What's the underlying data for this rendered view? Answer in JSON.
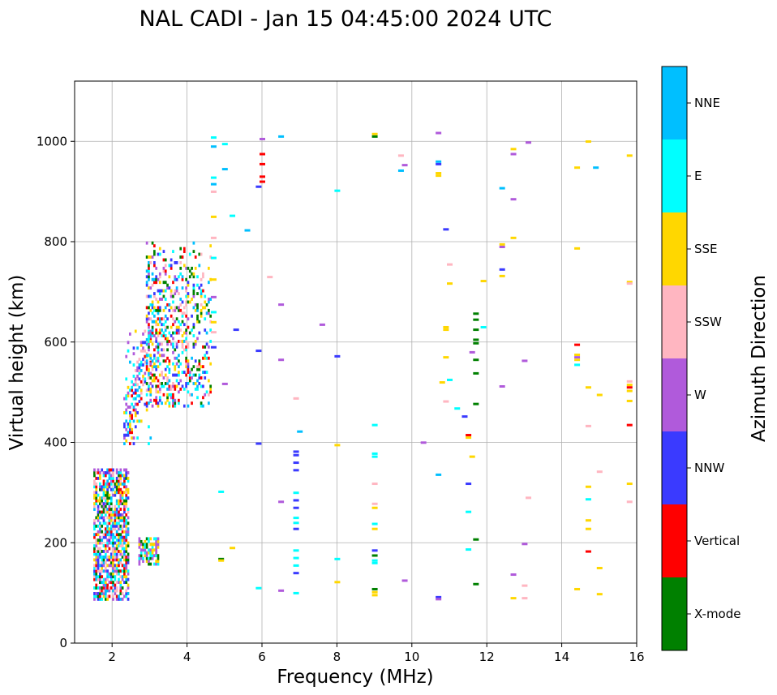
{
  "chart_data": {
    "type": "scatter",
    "title": "NAL CADI - Jan 15 04:45:00 2024 UTC",
    "xlabel": "Frequency (MHz)",
    "ylabel": "Virtual height (km)",
    "xlim": [
      1,
      16
    ],
    "ylim": [
      0,
      1120
    ],
    "xticks": [
      2,
      4,
      6,
      8,
      10,
      12,
      14,
      16
    ],
    "yticks": [
      0,
      200,
      400,
      600,
      800,
      1000
    ],
    "grid": true,
    "colorbar": {
      "label": "Azimuth Direction",
      "categories": [
        {
          "name": "X-mode",
          "color": "#008000"
        },
        {
          "name": "Vertical",
          "color": "#ff0000"
        },
        {
          "name": "NNW",
          "color": "#3a3aff"
        },
        {
          "name": "W",
          "color": "#b05adb"
        },
        {
          "name": "SSW",
          "color": "#ffb6c1"
        },
        {
          "name": "SSE",
          "color": "#ffd700"
        },
        {
          "name": "E",
          "color": "#00ffff"
        },
        {
          "name": "NNE",
          "color": "#00bfff"
        }
      ]
    },
    "clusters": [
      {
        "x": [
          1.5,
          2.4
        ],
        "y": [
          85,
          345
        ],
        "density": 0.65,
        "categories": [
          "Vertical",
          "E",
          "NNE",
          "SSW",
          "SSE",
          "NNW",
          "W",
          "X-mode"
        ]
      },
      {
        "x": [
          2.7,
          3.2
        ],
        "y": [
          155,
          210
        ],
        "density": 0.7,
        "categories": [
          "X-mode",
          "SSE",
          "W",
          "E"
        ]
      },
      {
        "x": [
          2.3,
          3.0
        ],
        "y": [
          395,
          620
        ],
        "density": 0.55,
        "categories": [
          "Vertical",
          "SSE",
          "E",
          "NNE",
          "SSW",
          "NNW",
          "W"
        ]
      },
      {
        "x": [
          2.9,
          4.6
        ],
        "y": [
          470,
          800
        ],
        "density": 0.45,
        "categories": [
          "X-mode",
          "Vertical",
          "NNW",
          "W",
          "SSE",
          "E",
          "NNE",
          "SSW"
        ]
      }
    ],
    "points": [
      {
        "x": 4.7,
        "y": 1008,
        "c": "E"
      },
      {
        "x": 5.0,
        "y": 995,
        "c": "E"
      },
      {
        "x": 4.7,
        "y": 990,
        "c": "NNE"
      },
      {
        "x": 4.7,
        "y": 928,
        "c": "E"
      },
      {
        "x": 4.7,
        "y": 915,
        "c": "NNE"
      },
      {
        "x": 4.7,
        "y": 900,
        "c": "SSW"
      },
      {
        "x": 5.0,
        "y": 945,
        "c": "NNE"
      },
      {
        "x": 4.7,
        "y": 850,
        "c": "SSE"
      },
      {
        "x": 5.2,
        "y": 852,
        "c": "E"
      },
      {
        "x": 5.6,
        "y": 823,
        "c": "NNE"
      },
      {
        "x": 4.7,
        "y": 808,
        "c": "SSW"
      },
      {
        "x": 4.7,
        "y": 768,
        "c": "E"
      },
      {
        "x": 4.7,
        "y": 725,
        "c": "SSE"
      },
      {
        "x": 4.7,
        "y": 690,
        "c": "W"
      },
      {
        "x": 4.7,
        "y": 660,
        "c": "E"
      },
      {
        "x": 4.7,
        "y": 640,
        "c": "SSE"
      },
      {
        "x": 4.7,
        "y": 590,
        "c": "NNW"
      },
      {
        "x": 4.7,
        "y": 620,
        "c": "SSW"
      },
      {
        "x": 5.3,
        "y": 625,
        "c": "NNW"
      },
      {
        "x": 5.0,
        "y": 517,
        "c": "W"
      },
      {
        "x": 4.9,
        "y": 302,
        "c": "E"
      },
      {
        "x": 5.2,
        "y": 190,
        "c": "SSE"
      },
      {
        "x": 4.9,
        "y": 168,
        "c": "X-mode"
      },
      {
        "x": 4.9,
        "y": 165,
        "c": "SSE"
      },
      {
        "x": 6.0,
        "y": 1005,
        "c": "W"
      },
      {
        "x": 6.0,
        "y": 975,
        "c": "Vertical"
      },
      {
        "x": 6.0,
        "y": 955,
        "c": "Vertical"
      },
      {
        "x": 6.0,
        "y": 930,
        "c": "Vertical"
      },
      {
        "x": 6.0,
        "y": 920,
        "c": "Vertical"
      },
      {
        "x": 5.9,
        "y": 910,
        "c": "NNW"
      },
      {
        "x": 6.5,
        "y": 1010,
        "c": "NNE"
      },
      {
        "x": 6.2,
        "y": 730,
        "c": "SSW"
      },
      {
        "x": 6.5,
        "y": 675,
        "c": "W"
      },
      {
        "x": 7.6,
        "y": 635,
        "c": "W"
      },
      {
        "x": 5.9,
        "y": 583,
        "c": "NNW"
      },
      {
        "x": 6.5,
        "y": 565,
        "c": "W"
      },
      {
        "x": 6.9,
        "y": 488,
        "c": "SSW"
      },
      {
        "x": 7.0,
        "y": 422,
        "c": "NNE"
      },
      {
        "x": 5.9,
        "y": 398,
        "c": "NNW"
      },
      {
        "x": 6.9,
        "y": 382,
        "c": "NNW"
      },
      {
        "x": 6.9,
        "y": 375,
        "c": "NNW"
      },
      {
        "x": 6.9,
        "y": 360,
        "c": "NNW"
      },
      {
        "x": 6.9,
        "y": 345,
        "c": "NNW"
      },
      {
        "x": 6.9,
        "y": 300,
        "c": "E"
      },
      {
        "x": 6.9,
        "y": 285,
        "c": "NNW"
      },
      {
        "x": 6.9,
        "y": 270,
        "c": "NNW"
      },
      {
        "x": 6.9,
        "y": 250,
        "c": "E"
      },
      {
        "x": 6.9,
        "y": 240,
        "c": "E"
      },
      {
        "x": 6.9,
        "y": 228,
        "c": "NNW"
      },
      {
        "x": 6.5,
        "y": 282,
        "c": "W"
      },
      {
        "x": 6.9,
        "y": 185,
        "c": "E"
      },
      {
        "x": 6.9,
        "y": 170,
        "c": "E"
      },
      {
        "x": 6.9,
        "y": 155,
        "c": "E"
      },
      {
        "x": 6.9,
        "y": 140,
        "c": "NNW"
      },
      {
        "x": 5.9,
        "y": 110,
        "c": "E"
      },
      {
        "x": 6.5,
        "y": 105,
        "c": "W"
      },
      {
        "x": 6.9,
        "y": 100,
        "c": "E"
      },
      {
        "x": 8.0,
        "y": 902,
        "c": "E"
      },
      {
        "x": 8.0,
        "y": 572,
        "c": "NNW"
      },
      {
        "x": 8.0,
        "y": 395,
        "c": "SSE"
      },
      {
        "x": 8.0,
        "y": 168,
        "c": "E"
      },
      {
        "x": 8.0,
        "y": 122,
        "c": "SSE"
      },
      {
        "x": 9.0,
        "y": 1015,
        "c": "SSE"
      },
      {
        "x": 9.0,
        "y": 1010,
        "c": "X-mode"
      },
      {
        "x": 9.0,
        "y": 435,
        "c": "E"
      },
      {
        "x": 9.0,
        "y": 378,
        "c": "E"
      },
      {
        "x": 9.0,
        "y": 372,
        "c": "E"
      },
      {
        "x": 9.0,
        "y": 318,
        "c": "SSW"
      },
      {
        "x": 9.0,
        "y": 278,
        "c": "SSW"
      },
      {
        "x": 9.0,
        "y": 270,
        "c": "SSE"
      },
      {
        "x": 9.0,
        "y": 238,
        "c": "E"
      },
      {
        "x": 9.0,
        "y": 228,
        "c": "SSE"
      },
      {
        "x": 9.0,
        "y": 185,
        "c": "NNW"
      },
      {
        "x": 9.0,
        "y": 175,
        "c": "X-mode"
      },
      {
        "x": 9.0,
        "y": 165,
        "c": "E"
      },
      {
        "x": 9.0,
        "y": 160,
        "c": "E"
      },
      {
        "x": 9.0,
        "y": 108,
        "c": "X-mode"
      },
      {
        "x": 9.0,
        "y": 102,
        "c": "SSE"
      },
      {
        "x": 9.0,
        "y": 96,
        "c": "SSE"
      },
      {
        "x": 9.7,
        "y": 972,
        "c": "SSW"
      },
      {
        "x": 9.8,
        "y": 953,
        "c": "W"
      },
      {
        "x": 9.7,
        "y": 942,
        "c": "NNE"
      },
      {
        "x": 10.7,
        "y": 1017,
        "c": "W"
      },
      {
        "x": 10.7,
        "y": 960,
        "c": "NNE"
      },
      {
        "x": 10.7,
        "y": 955,
        "c": "NNW"
      },
      {
        "x": 10.7,
        "y": 937,
        "c": "SSE"
      },
      {
        "x": 10.7,
        "y": 932,
        "c": "SSE"
      },
      {
        "x": 10.9,
        "y": 825,
        "c": "NNW"
      },
      {
        "x": 11.0,
        "y": 755,
        "c": "SSW"
      },
      {
        "x": 11.0,
        "y": 717,
        "c": "SSE"
      },
      {
        "x": 10.9,
        "y": 630,
        "c": "SSE"
      },
      {
        "x": 10.9,
        "y": 625,
        "c": "SSE"
      },
      {
        "x": 10.9,
        "y": 570,
        "c": "SSE"
      },
      {
        "x": 10.8,
        "y": 520,
        "c": "SSE"
      },
      {
        "x": 11.0,
        "y": 525,
        "c": "E"
      },
      {
        "x": 10.9,
        "y": 482,
        "c": "SSW"
      },
      {
        "x": 11.2,
        "y": 468,
        "c": "E"
      },
      {
        "x": 11.4,
        "y": 452,
        "c": "NNW"
      },
      {
        "x": 10.3,
        "y": 400,
        "c": "W"
      },
      {
        "x": 10.7,
        "y": 336,
        "c": "NNE"
      },
      {
        "x": 9.8,
        "y": 125,
        "c": "W"
      },
      {
        "x": 10.7,
        "y": 92,
        "c": "NNW"
      },
      {
        "x": 10.7,
        "y": 88,
        "c": "W"
      },
      {
        "x": 11.5,
        "y": 410,
        "c": "SSE"
      },
      {
        "x": 11.5,
        "y": 415,
        "c": "Vertical"
      },
      {
        "x": 11.6,
        "y": 372,
        "c": "SSE"
      },
      {
        "x": 11.5,
        "y": 318,
        "c": "NNW"
      },
      {
        "x": 11.5,
        "y": 262,
        "c": "E"
      },
      {
        "x": 11.5,
        "y": 187,
        "c": "E"
      },
      {
        "x": 11.7,
        "y": 657,
        "c": "X-mode"
      },
      {
        "x": 11.7,
        "y": 645,
        "c": "X-mode"
      },
      {
        "x": 11.7,
        "y": 625,
        "c": "X-mode"
      },
      {
        "x": 11.7,
        "y": 605,
        "c": "X-mode"
      },
      {
        "x": 11.7,
        "y": 598,
        "c": "X-mode"
      },
      {
        "x": 11.9,
        "y": 630,
        "c": "E"
      },
      {
        "x": 11.6,
        "y": 580,
        "c": "W"
      },
      {
        "x": 11.7,
        "y": 565,
        "c": "X-mode"
      },
      {
        "x": 11.7,
        "y": 538,
        "c": "X-mode"
      },
      {
        "x": 11.7,
        "y": 477,
        "c": "X-mode"
      },
      {
        "x": 11.7,
        "y": 207,
        "c": "X-mode"
      },
      {
        "x": 11.7,
        "y": 118,
        "c": "X-mode"
      },
      {
        "x": 11.9,
        "y": 722,
        "c": "SSE"
      },
      {
        "x": 12.4,
        "y": 907,
        "c": "NNE"
      },
      {
        "x": 12.7,
        "y": 885,
        "c": "W"
      },
      {
        "x": 12.7,
        "y": 985,
        "c": "SSE"
      },
      {
        "x": 12.7,
        "y": 975,
        "c": "W"
      },
      {
        "x": 13.1,
        "y": 998,
        "c": "W"
      },
      {
        "x": 12.7,
        "y": 808,
        "c": "SSE"
      },
      {
        "x": 12.4,
        "y": 795,
        "c": "SSE"
      },
      {
        "x": 12.4,
        "y": 790,
        "c": "W"
      },
      {
        "x": 12.4,
        "y": 745,
        "c": "NNW"
      },
      {
        "x": 12.4,
        "y": 732,
        "c": "SSE"
      },
      {
        "x": 13.0,
        "y": 563,
        "c": "W"
      },
      {
        "x": 12.4,
        "y": 512,
        "c": "W"
      },
      {
        "x": 13.1,
        "y": 290,
        "c": "SSW"
      },
      {
        "x": 13.0,
        "y": 198,
        "c": "W"
      },
      {
        "x": 12.7,
        "y": 137,
        "c": "W"
      },
      {
        "x": 13.0,
        "y": 115,
        "c": "SSW"
      },
      {
        "x": 12.7,
        "y": 90,
        "c": "SSE"
      },
      {
        "x": 13.0,
        "y": 90,
        "c": "SSW"
      },
      {
        "x": 14.4,
        "y": 948,
        "c": "SSE"
      },
      {
        "x": 14.9,
        "y": 948,
        "c": "NNE"
      },
      {
        "x": 14.7,
        "y": 1000,
        "c": "SSE"
      },
      {
        "x": 14.4,
        "y": 787,
        "c": "SSE"
      },
      {
        "x": 14.4,
        "y": 595,
        "c": "Vertical"
      },
      {
        "x": 14.4,
        "y": 575,
        "c": "SSE"
      },
      {
        "x": 14.4,
        "y": 570,
        "c": "W"
      },
      {
        "x": 14.4,
        "y": 565,
        "c": "SSE"
      },
      {
        "x": 14.4,
        "y": 555,
        "c": "E"
      },
      {
        "x": 14.7,
        "y": 510,
        "c": "SSE"
      },
      {
        "x": 15.0,
        "y": 495,
        "c": "SSE"
      },
      {
        "x": 14.7,
        "y": 433,
        "c": "SSW"
      },
      {
        "x": 15.0,
        "y": 342,
        "c": "SSW"
      },
      {
        "x": 14.7,
        "y": 312,
        "c": "SSE"
      },
      {
        "x": 14.7,
        "y": 287,
        "c": "E"
      },
      {
        "x": 14.7,
        "y": 245,
        "c": "SSE"
      },
      {
        "x": 14.7,
        "y": 228,
        "c": "SSE"
      },
      {
        "x": 14.7,
        "y": 183,
        "c": "Vertical"
      },
      {
        "x": 15.0,
        "y": 150,
        "c": "SSE"
      },
      {
        "x": 14.4,
        "y": 108,
        "c": "SSE"
      },
      {
        "x": 15.0,
        "y": 98,
        "c": "SSE"
      },
      {
        "x": 15.8,
        "y": 972,
        "c": "SSE"
      },
      {
        "x": 15.8,
        "y": 720,
        "c": "SSE"
      },
      {
        "x": 15.8,
        "y": 717,
        "c": "SSW"
      },
      {
        "x": 15.8,
        "y": 522,
        "c": "SSW"
      },
      {
        "x": 15.8,
        "y": 515,
        "c": "SSE"
      },
      {
        "x": 15.8,
        "y": 510,
        "c": "Vertical"
      },
      {
        "x": 15.8,
        "y": 503,
        "c": "SSE"
      },
      {
        "x": 15.8,
        "y": 483,
        "c": "SSE"
      },
      {
        "x": 15.8,
        "y": 435,
        "c": "Vertical"
      },
      {
        "x": 15.8,
        "y": 318,
        "c": "SSE"
      },
      {
        "x": 15.8,
        "y": 282,
        "c": "SSW"
      }
    ]
  }
}
